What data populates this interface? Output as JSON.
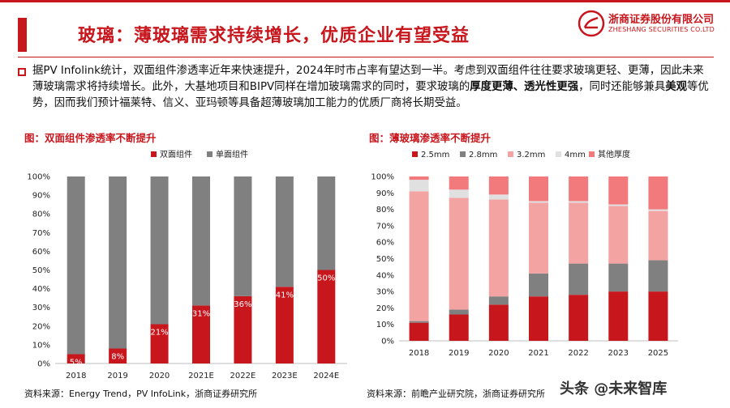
{
  "header": {
    "title": "玻璃：薄玻璃需求持续增长，优质企业有望受益",
    "logo_cn": "浙商证券股份有限公司",
    "logo_en": "ZHESHANG SECURITIES CO.LTD"
  },
  "paragraph": {
    "p1": "据PV Infolink统计，双面组件渗透率近年来快速提升，2024年时市占率有望达到一半。考虑到双面组件往往要求玻璃更轻、更薄，因此未来薄玻璃需求将持续增长。此外，大基地项目和BIPV同样在增加玻璃需求的同时，要求玻璃的",
    "b1": "厚度更薄、透光性更强",
    "p2": "，同时还能够兼具",
    "b2": "美观",
    "p3": "等优势，因而我们预计福莱特、信义、亚玛顿等具备超薄玻璃加工能力的优质厂商将长期受益。"
  },
  "left": {
    "title": "图：双面组件渗透率不断提升",
    "source": "资料来源：Energy Trend，PV InfoLink，浙商证券研究所"
  },
  "right": {
    "title": "图：薄玻璃渗透率不断提升",
    "source": "资料来源：前瞻产业研究院，浙商证券研究所"
  },
  "watermark": "头条 @未来智库",
  "colors": {
    "accent": "#c8161d",
    "grey": "#808080",
    "pink": "#f4a3a3",
    "light": "#e0e0e0",
    "coral": "#f2797c"
  },
  "chart_data": [
    {
      "type": "bar",
      "stacked": true,
      "categories": [
        "2018",
        "2019",
        "2020",
        "2021E",
        "2022E",
        "2023E",
        "2024E"
      ],
      "series": [
        {
          "name": "双面组件",
          "values": [
            5,
            8,
            21,
            31,
            36,
            41,
            50
          ],
          "color": "#c8161d"
        },
        {
          "name": "单面组件",
          "values": [
            95,
            92,
            79,
            69,
            64,
            59,
            50
          ],
          "color": "#808080"
        }
      ],
      "data_labels": [
        "5%",
        "8%",
        "21%",
        "31%",
        "36%",
        "41%",
        "50%"
      ],
      "yticks": [
        "0%",
        "10%",
        "20%",
        "30%",
        "40%",
        "50%",
        "60%",
        "70%",
        "80%",
        "90%",
        "100%"
      ],
      "ylim": [
        0,
        100
      ],
      "legend": "top"
    },
    {
      "type": "bar",
      "stacked": true,
      "categories": [
        "2018",
        "2019",
        "2020",
        "2021",
        "2022",
        "2023",
        "2025"
      ],
      "series": [
        {
          "name": "2.5mm",
          "values": [
            11,
            16,
            22,
            27,
            28,
            30,
            30
          ],
          "color": "#c8161d"
        },
        {
          "name": "2.8mm",
          "values": [
            1,
            3,
            5,
            14,
            19,
            17,
            19
          ],
          "color": "#808080"
        },
        {
          "name": "3.2mm",
          "values": [
            79,
            68,
            59,
            43,
            37,
            35,
            30
          ],
          "color": "#f4a3a3"
        },
        {
          "name": "4mm",
          "values": [
            7,
            5,
            3,
            1,
            1,
            1,
            1
          ],
          "color": "#e0e0e0"
        },
        {
          "name": "其他厚度",
          "values": [
            2,
            8,
            11,
            15,
            15,
            17,
            20
          ],
          "color": "#f2797c"
        }
      ],
      "yticks": [
        "0%",
        "10%",
        "20%",
        "30%",
        "40%",
        "50%",
        "60%",
        "70%",
        "80%",
        "90%",
        "100%"
      ],
      "ylim": [
        0,
        100
      ],
      "legend": "top"
    }
  ]
}
